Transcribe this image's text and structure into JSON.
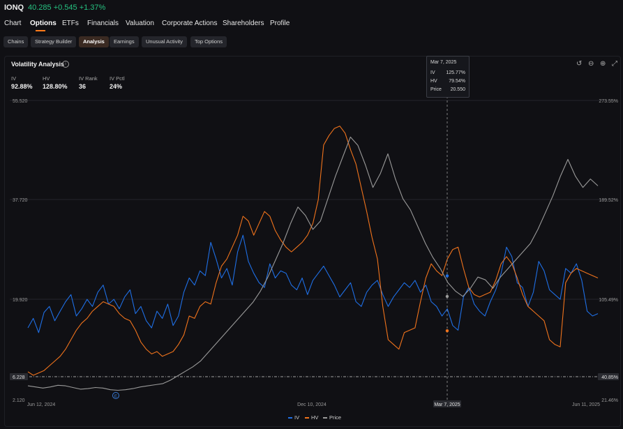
{
  "header": {
    "ticker": "IONQ",
    "quote": "40.285 +0.545 +1.37%"
  },
  "nav": {
    "tabs": [
      "Chart",
      "Options",
      "ETFs",
      "Financials",
      "Valuation",
      "Corporate Actions",
      "Shareholders",
      "Profile"
    ],
    "active": "Options"
  },
  "subnav": {
    "tabs": [
      "Chains",
      "Strategy Builder",
      "Analysis",
      "Earnings",
      "Unusual Activity",
      "Top Options"
    ],
    "active": "Analysis"
  },
  "panel": {
    "title": "Volatility Analysis",
    "info_icon": "info-icon",
    "stats": [
      {
        "label": "IV",
        "value": "92.88%"
      },
      {
        "label": "HV",
        "value": "128.80%"
      },
      {
        "label": "IV Rank",
        "value": "36"
      },
      {
        "label": "IV Pctl",
        "value": "24%"
      }
    ],
    "tools": [
      "reset-icon",
      "zoom-out-icon",
      "zoom-in-icon",
      "fullscreen-icon"
    ]
  },
  "tooltip": {
    "date": "Mar 7, 2025",
    "rows": [
      {
        "label": "IV",
        "value": "125.77%"
      },
      {
        "label": "HV",
        "value": "79.54%"
      },
      {
        "label": "Price",
        "value": "20.550"
      }
    ]
  },
  "chart_data": {
    "type": "line",
    "x_tick_labels": [
      "Jun 12, 2024",
      "Dec 10, 2024",
      "Mar 7, 2025",
      "Jun 11, 2025"
    ],
    "left_axis": {
      "ticks": [
        "55.520",
        "37.720",
        "19.920",
        "2.120"
      ],
      "range": [
        2.12,
        55.52
      ],
      "marker": "6.228"
    },
    "right_axis": {
      "ticks": [
        "273.55%",
        "189.52%",
        "105.49%",
        "21.46%"
      ],
      "range": [
        21.46,
        273.55
      ],
      "marker": "40.85%"
    },
    "earnings_marker": "E",
    "legend": [
      "IV",
      "HV",
      "Price"
    ],
    "colors": {
      "IV": "#1f6fe5",
      "HV": "#f0731c",
      "Price": "#9a9a9a"
    },
    "series": [
      {
        "name": "IV",
        "axis": "right",
        "values": [
          82,
          90,
          78,
          95,
          100,
          88,
          96,
          104,
          110,
          92,
          98,
          106,
          100,
          112,
          118,
          102,
          106,
          98,
          108,
          114,
          94,
          100,
          88,
          82,
          96,
          90,
          102,
          84,
          92,
          112,
          124,
          118,
          130,
          126,
          154,
          140,
          124,
          132,
          118,
          146,
          160,
          138,
          128,
          120,
          116,
          136,
          124,
          130,
          128,
          118,
          114,
          124,
          110,
          122,
          128,
          134,
          126,
          118,
          108,
          114,
          120,
          104,
          100,
          112,
          118,
          122,
          110,
          100,
          108,
          114,
          120,
          116,
          122,
          112,
          118,
          104,
          100,
          92,
          98,
          84,
          80,
          108,
          116,
          102,
          96,
          92,
          104,
          114,
          128,
          150,
          142,
          120,
          116,
          100,
          112,
          138,
          130,
          114,
          110,
          106,
          132,
          128,
          136,
          122,
          96,
          92,
          94
        ]
      },
      {
        "name": "HV",
        "axis": "right",
        "values": [
          45,
          42,
          44,
          46,
          50,
          54,
          58,
          64,
          72,
          80,
          86,
          90,
          96,
          100,
          104,
          102,
          100,
          94,
          90,
          88,
          80,
          70,
          64,
          60,
          62,
          58,
          60,
          62,
          68,
          76,
          92,
          90,
          100,
          104,
          102,
          120,
          134,
          140,
          150,
          160,
          176,
          172,
          160,
          170,
          180,
          176,
          164,
          156,
          150,
          146,
          150,
          154,
          160,
          170,
          190,
          236,
          244,
          250,
          252,
          246,
          232,
          220,
          200,
          180,
          158,
          140,
          100,
          72,
          68,
          64,
          78,
          80,
          82,
          104,
          124,
          136,
          130,
          126,
          140,
          148,
          150,
          132,
          116,
          110,
          108,
          110,
          112,
          122,
          136,
          142,
          136,
          124,
          110,
          100,
          96,
          92,
          88,
          72,
          68,
          66,
          120,
          128,
          132,
          130,
          128,
          126,
          124
        ]
      },
      {
        "name": "Price",
        "axis": "left",
        "values": [
          4.6,
          4.4,
          4.2,
          4.4,
          4.7,
          4.6,
          4.3,
          4.0,
          4.1,
          4.3,
          4.2,
          3.9,
          3.8,
          3.9,
          4.1,
          4.4,
          4.6,
          4.8,
          5.0,
          5.6,
          6.4,
          7.2,
          8.0,
          9.0,
          10.5,
          12.0,
          13.5,
          15.0,
          16.5,
          18.0,
          19.5,
          21.5,
          24.0,
          27.0,
          30.0,
          33.5,
          36.5,
          35.0,
          32.5,
          34.0,
          38.0,
          42.0,
          45.5,
          49.0,
          47.5,
          44.0,
          40.0,
          42.5,
          46.0,
          41.5,
          38.0,
          36.0,
          33.0,
          30.0,
          27.5,
          25.5,
          23.0,
          21.5,
          20.55,
          22.0,
          24.0,
          23.5,
          22.0,
          24.0,
          25.5,
          27.0,
          28.5,
          30.0,
          32.5,
          35.5,
          38.5,
          42.0,
          45.0,
          42.0,
          40.0,
          41.5,
          40.285
        ]
      }
    ],
    "cursor": {
      "date": "Mar 7, 2025",
      "IV": 125.77,
      "HV": 79.54,
      "Price": 20.55
    }
  }
}
